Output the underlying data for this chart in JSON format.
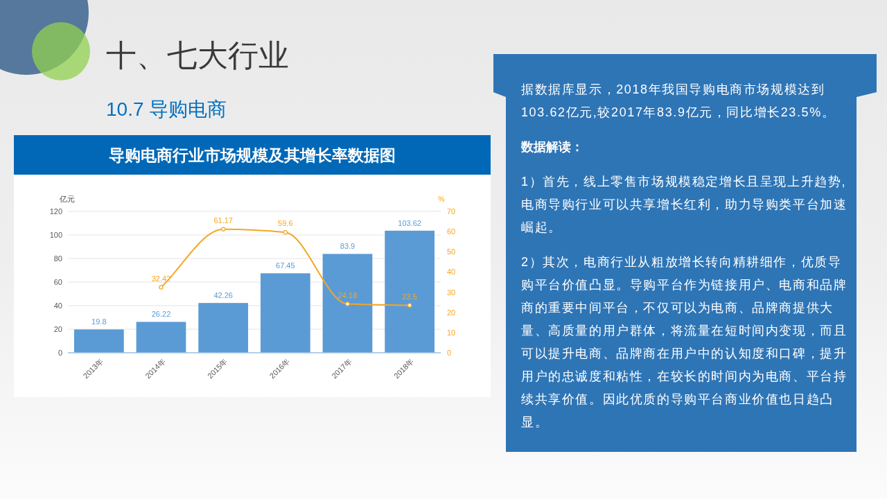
{
  "chart_data": {
    "type": "bar",
    "title": "导购电商行业市场规模及其增长率数据图",
    "annotations": [
      "十、七大行业",
      "10.7 导购电商",
      "据数据库显示，2018年我国导购电商市场规模达到103.62亿元,较2017年83.9亿元，同比增长23.5%。",
      "数据解读：",
      "1）首先，线上零售市场规模稳定增长且呈现上升趋势,电商导购行业可以共享增长红利，助力导购类平台加速崛起。",
      "2）其次，电商行业从粗放增长转向精耕细作，优质导购平台价值凸显。导购平台作为链接用户、电商和品牌商的重要中间平台，不仅可以为电商、品牌商提供大量、高质量的用户群体，将流量在短时间内变现，而且可以提升电商、品牌商在用户中的认知度和口碑，提升用户的忠诚度和粘性，在较长的时间内为电商、平台持续共享价值。因此优质的导购平台商业价值也日趋凸显。"
    ],
    "categories": [
      "2013年",
      "2014年",
      "2015年",
      "2016年",
      "2017年",
      "2018年"
    ],
    "series": [
      {
        "color": "#5b9bd5",
        "values": [
          19.8,
          26.22,
          42.26,
          67.45,
          83.9,
          103.62
        ]
      },
      {
        "type": "line",
        "axis": "y2",
        "color": "#f5a623",
        "values": [
          null,
          32.42,
          61.17,
          59.6,
          24.18,
          23.5
        ]
      }
    ],
    "ylabel": "亿元",
    "y2label": "%",
    "ylim": [
      0,
      120
    ],
    "yticks": [
      0,
      20,
      40,
      60,
      80,
      100,
      120
    ],
    "y2lim": [
      0,
      70
    ],
    "y2ticks": [
      0,
      10,
      20,
      30,
      40,
      50,
      60,
      70
    ],
    "grid": "y",
    "data_labels": true,
    "marker": "circle",
    "line_style": "solid"
  }
}
